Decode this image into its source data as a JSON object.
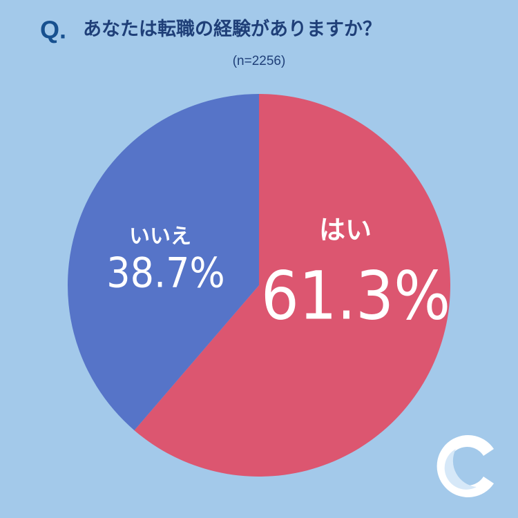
{
  "chart_data": {
    "type": "pie",
    "prefix": "Q.",
    "title": "あなたは転職の経験がありますか？",
    "subtitle": "(n=2256)",
    "categories": [
      "はい",
      "いいえ"
    ],
    "values": [
      61.3,
      38.7
    ],
    "value_labels": [
      "61.3%",
      "38.7%"
    ],
    "colors": [
      "#dc5670",
      "#5674c8"
    ]
  }
}
